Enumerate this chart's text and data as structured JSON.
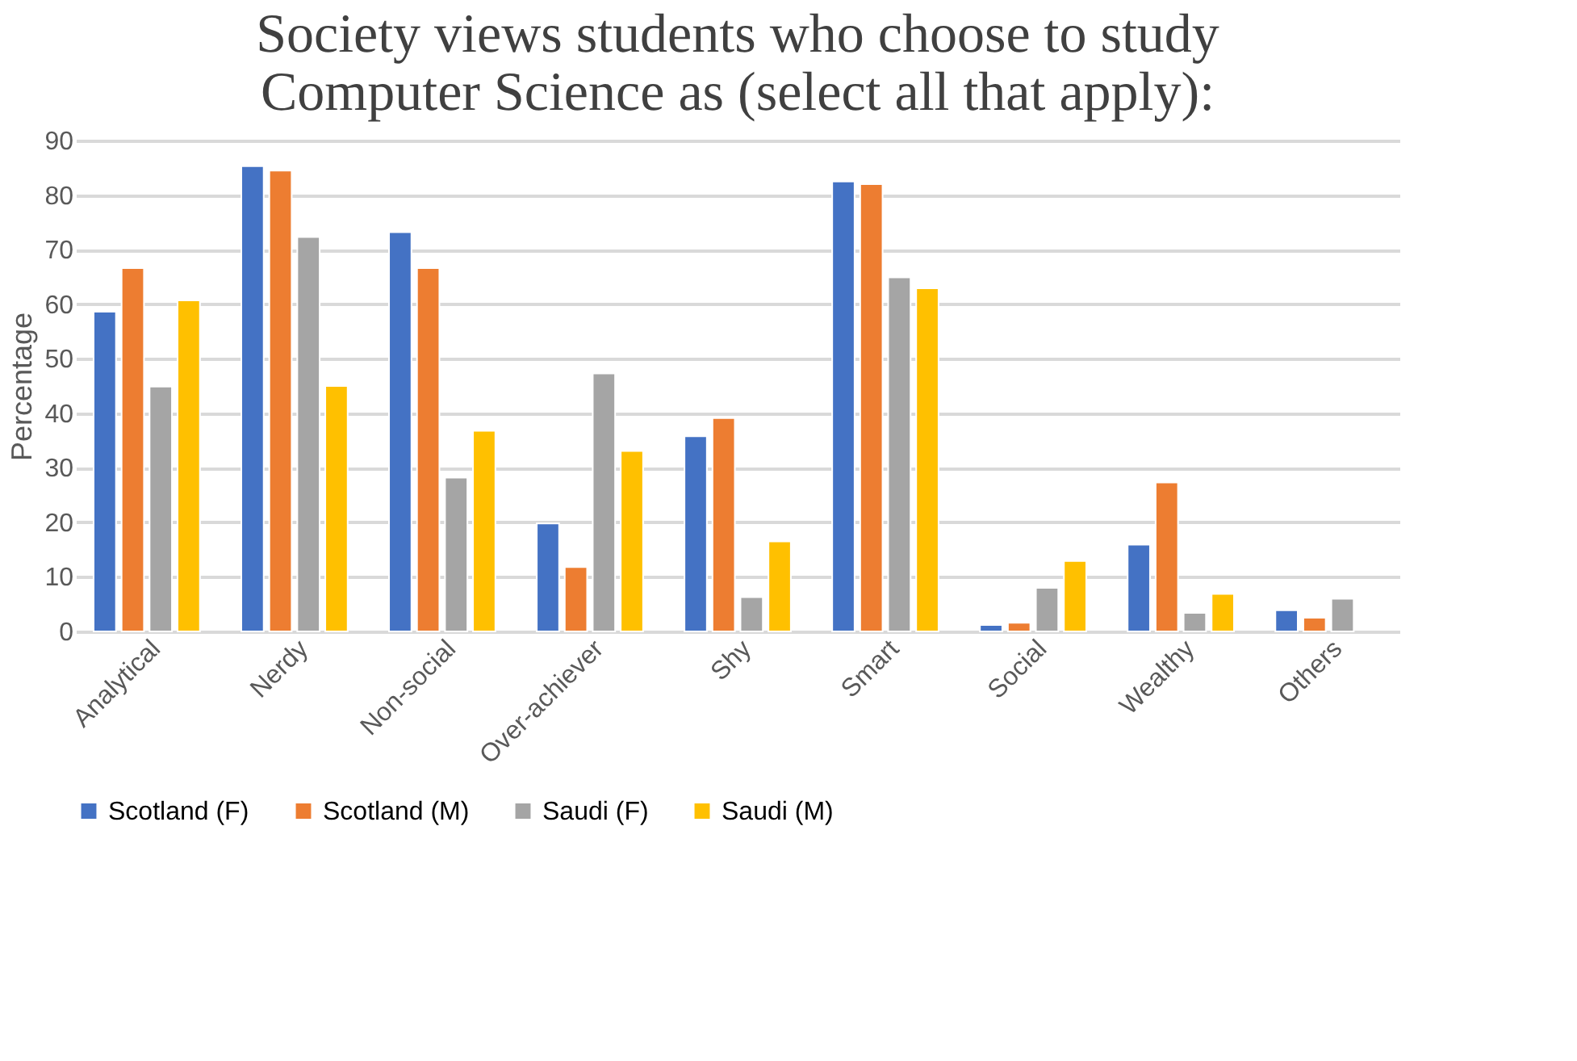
{
  "chart_data": {
    "type": "bar",
    "title": [
      "Society views students who choose to study",
      "Computer Science as (select all that apply):"
    ],
    "ylabel": "Percentage",
    "categories": [
      "Analytical",
      "Nerdy",
      "Non-social",
      "Over-achiever",
      "Shy",
      "Smart",
      "Social",
      "Wealthy",
      "Others"
    ],
    "series": [
      {
        "name": "Scotland (F)",
        "color": "#4472c4",
        "values": [
          58.6,
          85.3,
          73.2,
          19.8,
          35.8,
          82.5,
          1.2,
          15.9,
          3.9
        ]
      },
      {
        "name": "Scotland (M)",
        "color": "#ed7d31",
        "values": [
          66.6,
          84.5,
          66.6,
          11.8,
          39.1,
          82.0,
          1.6,
          27.3,
          2.5
        ]
      },
      {
        "name": "Saudi (F)",
        "color": "#a5a5a5",
        "values": [
          44.9,
          72.3,
          28.2,
          47.3,
          6.3,
          64.9,
          8.0,
          3.4,
          6.0
        ]
      },
      {
        "name": "Saudi (M)",
        "color": "#ffc000",
        "values": [
          60.7,
          45.0,
          36.8,
          33.1,
          16.5,
          62.9,
          12.9,
          6.9,
          null
        ]
      }
    ],
    "ylim": [
      0,
      90
    ],
    "yticks": [
      0,
      10,
      20,
      30,
      40,
      50,
      60,
      70,
      80,
      90
    ],
    "grid": "y",
    "legend": "bottom"
  }
}
